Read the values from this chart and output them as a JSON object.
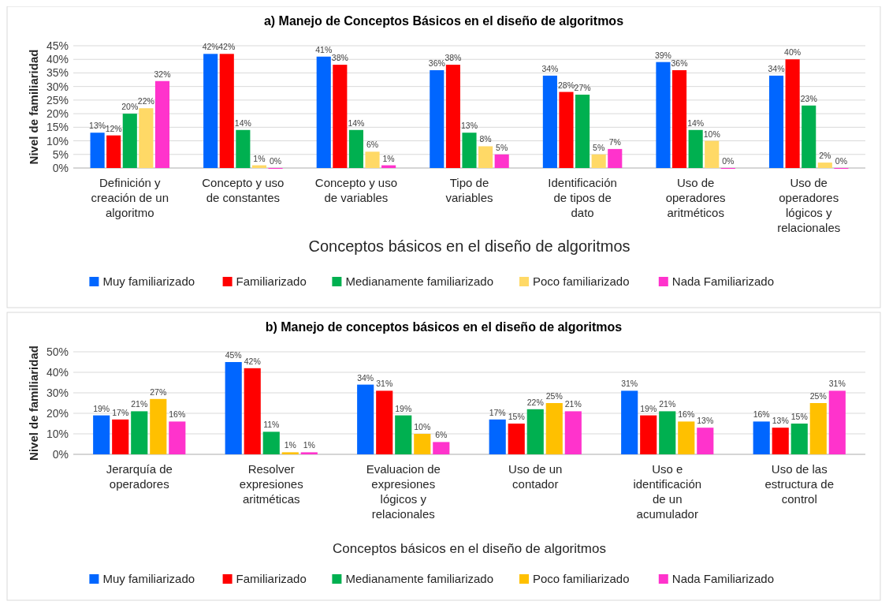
{
  "chart_data": [
    {
      "type": "bar",
      "title": "a) Manejo de Conceptos Básicos en el diseño de algoritmos",
      "xlabel": "Conceptos básicos en el diseño de algoritmos",
      "ylabel": "Nivel de familiaridad",
      "categories": [
        "Definición y creación de un algoritmo",
        "Concepto y uso de constantes",
        "Concepto y uso de variables",
        "Tipo de variables",
        "Identificación de tipos de dato",
        "Uso de operadores aritméticos",
        "Uso de operadores lógicos y relacionales"
      ],
      "series": [
        {
          "name": "Muy familiarizado",
          "color": "#0066ff",
          "values": [
            13,
            42,
            41,
            36,
            34,
            39,
            34
          ],
          "value_labels": [
            "13%",
            "42%",
            "41%",
            "36%",
            "34%",
            "39%",
            "34%"
          ]
        },
        {
          "name": "Familiarizado",
          "color": "#ff0000",
          "values": [
            12,
            42,
            38,
            38,
            28,
            36,
            40
          ],
          "value_labels": [
            "12%",
            "42%",
            "38%",
            "38%",
            "28%",
            "36%",
            "40%"
          ]
        },
        {
          "name": "Medianamente familiarizado",
          "color": "#00b050",
          "values": [
            20,
            14,
            14,
            13,
            27,
            14,
            23
          ],
          "value_labels": [
            "20%",
            "14%",
            "14%",
            "13%",
            "27%",
            "14%",
            "23%"
          ]
        },
        {
          "name": "Poco familiarizado",
          "color": "#ffd966",
          "values": [
            22,
            1,
            6,
            8,
            5,
            10,
            2
          ],
          "value_labels": [
            "22%",
            "1%",
            "6%",
            "8%",
            "5%",
            "10%",
            "2%"
          ]
        },
        {
          "name": "Nada Familiarizado",
          "color": "#ff33cc",
          "values": [
            32,
            0,
            1,
            5,
            7,
            0,
            0
          ],
          "value_labels": [
            "32%",
            "0%",
            "1%",
            "5%",
            "7%",
            "0%",
            "0%"
          ]
        }
      ],
      "ylim": [
        0,
        45
      ],
      "yticks": [
        {
          "value": 0,
          "label": "0%"
        },
        {
          "value": 5,
          "label": "5%"
        },
        {
          "value": 10,
          "label": "10%"
        },
        {
          "value": 15,
          "label": "15%"
        },
        {
          "value": 20,
          "label": "20%"
        },
        {
          "value": 25,
          "label": "25%"
        },
        {
          "value": 30,
          "label": "30%"
        },
        {
          "value": 35,
          "label": "35%"
        },
        {
          "value": 40,
          "label": "40%"
        },
        {
          "value": 45,
          "label": "45%"
        }
      ],
      "grid": "y",
      "legend": "bottom"
    },
    {
      "type": "bar",
      "title": "b) Manejo de conceptos básicos en el diseño de algoritmos",
      "xlabel": "Conceptos básicos en el diseño de algoritmos",
      "ylabel": "Nivel de familiaridad",
      "categories": [
        "Jerarquía de operadores",
        "Resolver expresiones aritméticas",
        "Evaluacion de expresiones lógicos y relacionales",
        "Uso  de un contador",
        "Uso e identificación de un acumulador",
        "Uso de las estructura de control"
      ],
      "series": [
        {
          "name": "Muy familiarizado",
          "color": "#0066ff",
          "values": [
            19,
            45,
            34,
            17,
            31,
            16
          ],
          "value_labels": [
            "19%",
            "45%",
            "34%",
            "17%",
            "31%",
            "16%"
          ]
        },
        {
          "name": "Familiarizado",
          "color": "#ff0000",
          "values": [
            17,
            42,
            31,
            15,
            19,
            13
          ],
          "value_labels": [
            "17%",
            "42%",
            "31%",
            "15%",
            "19%",
            "13%"
          ]
        },
        {
          "name": "Medianamente familiarizado",
          "color": "#00b050",
          "values": [
            21,
            11,
            19,
            22,
            21,
            15
          ],
          "value_labels": [
            "21%",
            "11%",
            "19%",
            "22%",
            "21%",
            "15%"
          ]
        },
        {
          "name": "Poco familiarizado",
          "color": "#ffc000",
          "values": [
            27,
            1,
            10,
            25,
            16,
            25
          ],
          "value_labels": [
            "27%",
            "1%",
            "10%",
            "25%",
            "16%",
            "25%"
          ]
        },
        {
          "name": "Nada Familiarizado",
          "color": "#ff33cc",
          "values": [
            16,
            1,
            6,
            21,
            13,
            31
          ],
          "value_labels": [
            "16%",
            "1%",
            "6%",
            "21%",
            "13%",
            "31%"
          ]
        }
      ],
      "ylim": [
        0,
        50
      ],
      "yticks": [
        {
          "value": 0,
          "label": "0%"
        },
        {
          "value": 10,
          "label": "10%"
        },
        {
          "value": 20,
          "label": "20%"
        },
        {
          "value": 30,
          "label": "30%"
        },
        {
          "value": 40,
          "label": "40%"
        },
        {
          "value": 50,
          "label": "50%"
        }
      ],
      "grid": "y",
      "legend": "bottom"
    }
  ]
}
